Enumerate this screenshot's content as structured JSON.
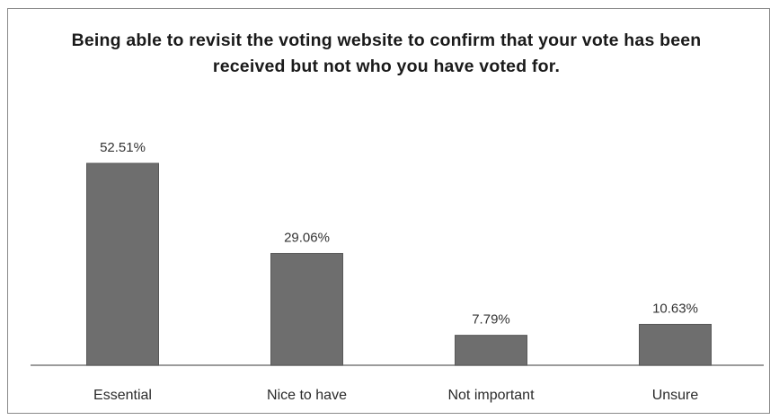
{
  "chart_data": {
    "type": "bar",
    "title": "Being able to revisit the voting website to confirm that your vote has been received but not who you have voted for.",
    "categories": [
      "Essential",
      "Nice to have",
      "Not important",
      "Unsure"
    ],
    "values": [
      52.51,
      29.06,
      7.79,
      10.63
    ],
    "data_labels": [
      "52.51%",
      "29.06%",
      "7.79%",
      "10.63%"
    ],
    "xlabel": "",
    "ylabel": "",
    "ylim": [
      0,
      55
    ],
    "grid": false,
    "legend": "none",
    "colors": {
      "bar": "#6e6e6e",
      "bar_edge": "#585858",
      "axis": "#7a7a7a"
    }
  }
}
